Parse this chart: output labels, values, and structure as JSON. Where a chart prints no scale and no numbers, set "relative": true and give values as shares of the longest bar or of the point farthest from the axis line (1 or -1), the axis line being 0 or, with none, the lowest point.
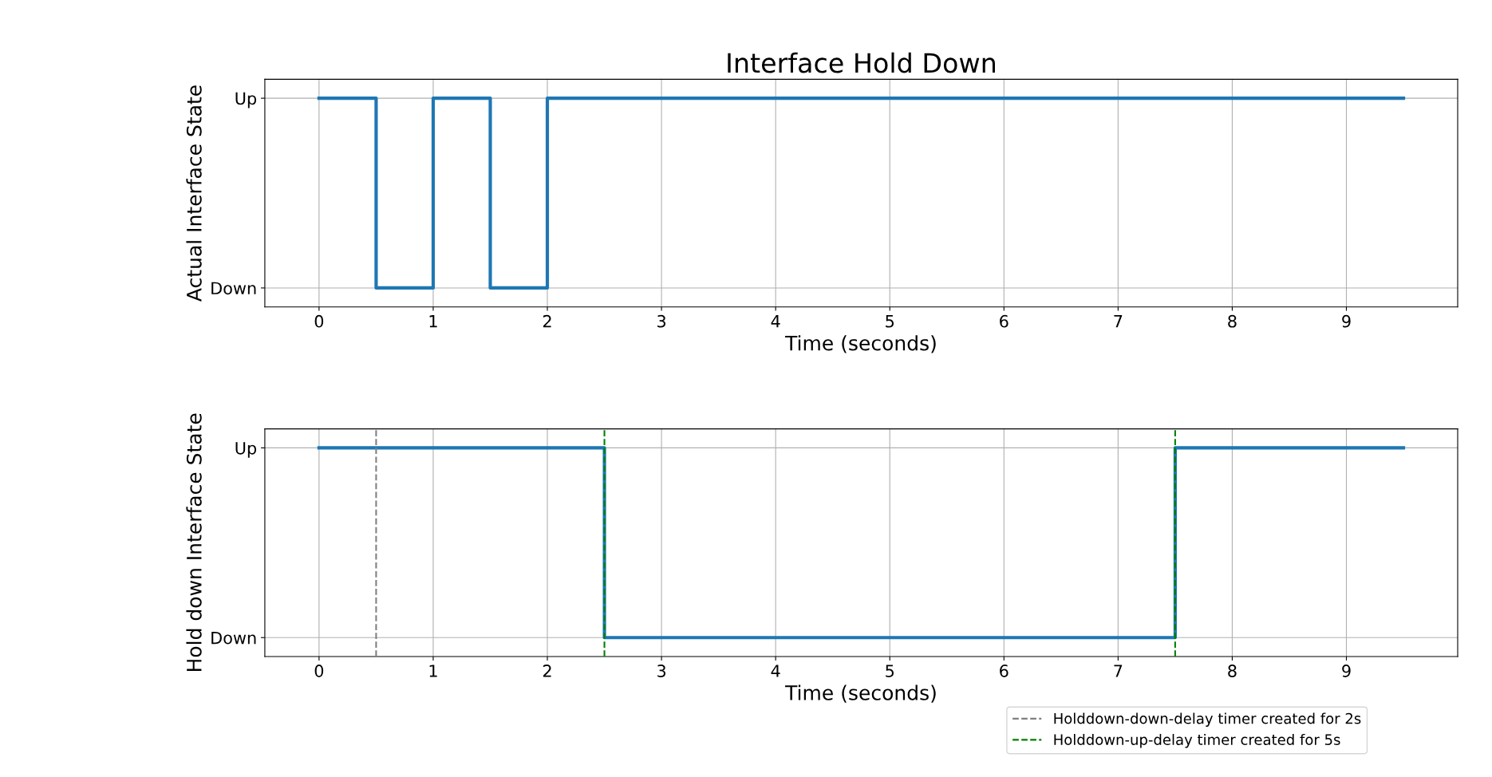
{
  "chart_data": [
    {
      "type": "step",
      "title": "Interface Hold Down",
      "xlabel": "Time (seconds)",
      "ylabel": "Actual Interface State",
      "x": [
        0,
        0.5,
        1,
        1.5,
        2,
        9.5
      ],
      "relative": true,
      "series": [
        {
          "color": "#1f77b4",
          "values": [
            1,
            0,
            1,
            0,
            1,
            1
          ]
        }
      ],
      "annotations": [
        "Down",
        "Up"
      ],
      "xlim": [
        -0.475,
        9.975
      ],
      "xticks": [
        0,
        1,
        2,
        3,
        4,
        5,
        6,
        7,
        8,
        9
      ],
      "grid": true,
      "legend": false
    },
    {
      "type": "step",
      "xlabel": "Time (seconds)",
      "ylabel": "Hold down Interface State",
      "x": [
        0,
        2.5,
        7.5,
        9.5
      ],
      "relative": true,
      "series": [
        {
          "color": "#1f77b4",
          "values": [
            1,
            0,
            1,
            1
          ]
        }
      ],
      "annotations": [
        "Down",
        "Up"
      ],
      "xlim": [
        -0.475,
        9.975
      ],
      "xticks": [
        0,
        1,
        2,
        3,
        4,
        5,
        6,
        7,
        8,
        9
      ],
      "grid": true,
      "ref_lines": [
        {
          "axis": "x",
          "value": 0.5,
          "label": "Holddown-down-delay timer created for 2s",
          "color": "#808080",
          "line_style": "dashed"
        },
        {
          "axis": "x",
          "value": 2.5,
          "label": "Holddown-up-delay timer created for 5s",
          "color": "#008000",
          "line_style": "dashed"
        },
        {
          "axis": "x",
          "value": 7.5,
          "color": "#008000",
          "line_style": "dashed"
        }
      ],
      "legend": "bottom"
    }
  ]
}
